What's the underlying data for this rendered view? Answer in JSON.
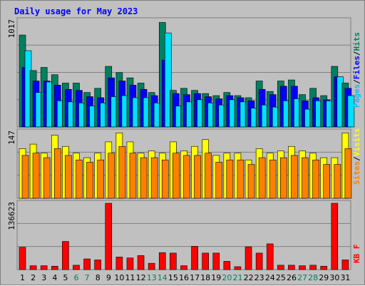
{
  "chart_data": {
    "type": "bar",
    "title": "Daily usage for May 2023",
    "days": [
      "1",
      "2",
      "3",
      "4",
      "5",
      "6",
      "7",
      "8",
      "9",
      "10",
      "11",
      "12",
      "13",
      "14",
      "15",
      "16",
      "17",
      "18",
      "19",
      "20",
      "21",
      "22",
      "23",
      "24",
      "25",
      "26",
      "27",
      "28",
      "29",
      "30",
      "31"
    ],
    "weekend_days": [
      "6",
      "7",
      "13",
      "14",
      "20",
      "21",
      "27",
      "28"
    ],
    "colors": {
      "hits": "#008060",
      "files": "#0000ff",
      "pages": "#00e0ff",
      "visits": "#ffff00",
      "sites": "#ff8000",
      "kbytes": "#ff0000",
      "weekday_label": "#000000",
      "weekend_label": "#00805c",
      "title": "#0000ff"
    },
    "panels": [
      {
        "ytick": "1017",
        "ymax": 1017,
        "legend": [
          {
            "text": "Pages",
            "color": "#00c0ff"
          },
          {
            "text": "/",
            "color": "#000000"
          },
          {
            "text": "Files",
            "color": "#0000ff"
          },
          {
            "text": "/",
            "color": "#000000"
          },
          {
            "text": "Hits",
            "color": "#008060"
          }
        ],
        "series": [
          {
            "key": "hits",
            "values": [
              880,
              540,
              570,
              500,
              420,
              420,
              330,
              370,
              580,
              520,
              470,
              420,
              330,
              1000,
              350,
              370,
              350,
              320,
              300,
              330,
              300,
              280,
              440,
              340,
              440,
              450,
              310,
              370,
              300,
              580,
              420
            ]
          },
          {
            "key": "files",
            "values": [
              570,
              440,
              440,
              400,
              360,
              350,
              290,
              280,
              470,
              440,
              400,
              360,
              300,
              640,
              320,
              310,
              320,
              290,
              270,
              300,
              280,
              250,
              360,
              310,
              390,
              390,
              250,
              280,
              260,
              480,
              370
            ]
          },
          {
            "key": "pages",
            "values": [
              730,
              330,
              430,
              250,
              240,
              230,
              200,
              230,
              290,
              300,
              280,
              280,
              230,
              900,
              200,
              240,
              260,
              230,
              210,
              260,
              240,
              180,
              210,
              190,
              250,
              270,
              170,
              250,
              250,
              480,
              300
            ]
          }
        ]
      },
      {
        "ytick": "147",
        "ymax": 147,
        "legend": [
          {
            "text": "Sites",
            "color": "#ff8000"
          },
          {
            "text": "/",
            "color": "#000000"
          },
          {
            "text": "Visits",
            "color": "#ffff00"
          }
        ],
        "series": [
          {
            "key": "visits",
            "values": [
              110,
              120,
              100,
              140,
              115,
              100,
              90,
              100,
              125,
              145,
              125,
              100,
              105,
              100,
              125,
              105,
              115,
              130,
              95,
              100,
              100,
              85,
              110,
              100,
              105,
              115,
              105,
              100,
              90,
              90,
              145
            ]
          },
          {
            "key": "sites",
            "values": [
              95,
              100,
              90,
              110,
              95,
              85,
              80,
              85,
              100,
              115,
              100,
              90,
              90,
              85,
              100,
              95,
              95,
              100,
              80,
              85,
              85,
              75,
              90,
              85,
              90,
              95,
              90,
              85,
              75,
              75,
              110
            ]
          }
        ]
      },
      {
        "ytick": "136623",
        "ymax": 136623,
        "legend": [
          {
            "text": "KB F",
            "color": "#ff0000"
          }
        ],
        "series": [
          {
            "key": "kbytes",
            "values": [
              46000,
              8000,
              8000,
              7000,
              58000,
              9000,
              22000,
              20000,
              136623,
              26000,
              24000,
              29000,
              13000,
              35000,
              34000,
              8000,
              48000,
              34000,
              34000,
              17000,
              6000,
              47000,
              34000,
              53000,
              9000,
              9000,
              8000,
              9000,
              7000,
              136623,
              20000
            ]
          }
        ]
      }
    ]
  }
}
